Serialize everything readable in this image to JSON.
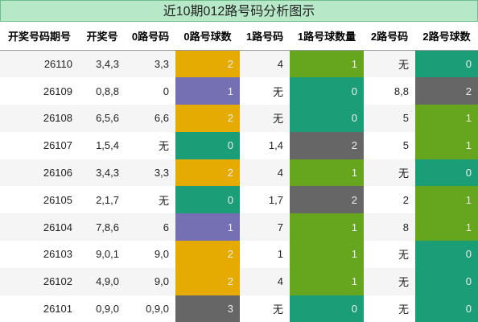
{
  "title": "近10期012路号码分析图示",
  "table": {
    "header": [
      "开奖号码期号",
      "开奖号",
      "0路号码",
      "0路号球数",
      "1路号码",
      "1路号球数量",
      "2路号码",
      "2路号球数"
    ],
    "rows": [
      [
        26110,
        "3,4,3",
        "3,3",
        2,
        "4",
        1,
        "无",
        0
      ],
      [
        26109,
        "0,8,8",
        "0",
        1,
        "无",
        0,
        "8,8",
        2
      ],
      [
        26108,
        "6,5,6",
        "6,6",
        2,
        "无",
        0,
        "5",
        1
      ],
      [
        26107,
        "1,5,4",
        "无",
        0,
        "1,4",
        2,
        "5",
        1
      ],
      [
        26106,
        "3,4,3",
        "3,3",
        2,
        "4",
        1,
        "无",
        0
      ],
      [
        26105,
        "2,1,7",
        "无",
        0,
        "1,7",
        2,
        "2",
        1
      ],
      [
        26104,
        "7,8,6",
        "6",
        1,
        "7",
        1,
        "8",
        1
      ],
      [
        26103,
        "9,0,1",
        "9,0",
        2,
        "1",
        1,
        "无",
        0
      ],
      [
        26102,
        "4,9,0",
        "9,0",
        2,
        "4",
        1,
        "无",
        0
      ],
      [
        26101,
        "0,9,0",
        "0,9,0",
        3,
        "无",
        0,
        "无",
        0
      ]
    ],
    "count_palettes": [
      [
        "#1b9e77",
        "#7570b3",
        "#e6ab02",
        "#666666"
      ],
      [
        "#1b9e77",
        "#66a61e",
        "#666666"
      ],
      [
        "#1b9e77",
        "#66a61e",
        "#666666"
      ]
    ]
  }
}
